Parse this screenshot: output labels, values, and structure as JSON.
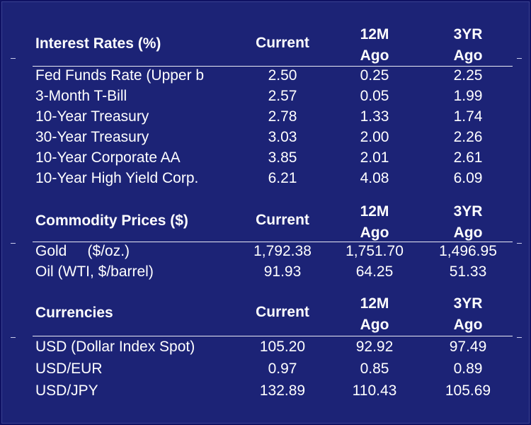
{
  "sections": [
    {
      "title": "Interest Rates (%)",
      "columns": [
        "Current",
        "12M\nAgo",
        "3YR\nAgo"
      ],
      "rows": [
        {
          "label": "Fed Funds Rate (Upper b",
          "current": "2.50",
          "m12": "0.25",
          "yr3": "2.25"
        },
        {
          "label": "3-Month T-Bill",
          "current": "2.57",
          "m12": "0.05",
          "yr3": "1.99"
        },
        {
          "label": "10-Year Treasury",
          "current": "2.78",
          "m12": "1.33",
          "yr3": "1.74"
        },
        {
          "label": "30-Year Treasury",
          "current": "3.03",
          "m12": "2.00",
          "yr3": "2.26"
        },
        {
          "label": "10-Year Corporate AA",
          "current": "3.85",
          "m12": "2.01",
          "yr3": "2.61"
        },
        {
          "label": "10-Year High Yield Corp.",
          "current": "6.21",
          "m12": "4.08",
          "yr3": "6.09"
        }
      ]
    },
    {
      "title": "Commodity Prices ($)",
      "columns": [
        "Current",
        "12M\nAgo",
        "3YR\nAgo"
      ],
      "rows": [
        {
          "label": "Gold     ($/oz.)",
          "current": "1,792.38",
          "m12": "1,751.70",
          "yr3": "1,496.95"
        },
        {
          "label": "Oil (WTI, $/barrel)",
          "current": "91.93",
          "m12": "64.25",
          "yr3": "51.33"
        }
      ]
    },
    {
      "title": "Currencies",
      "columns": [
        "Current",
        "12M\nAgo",
        "3YR\nAgo"
      ],
      "rows": [
        {
          "label": "USD (Dollar Index Spot)",
          "current": "105.20",
          "m12": "92.92",
          "yr3": "97.49"
        },
        {
          "label": "USD/EUR",
          "current": "0.97",
          "m12": "0.85",
          "yr3": "0.89"
        },
        {
          "label": "USD/JPY",
          "current": "132.89",
          "m12": "110.43",
          "yr3": "105.69"
        }
      ]
    }
  ]
}
